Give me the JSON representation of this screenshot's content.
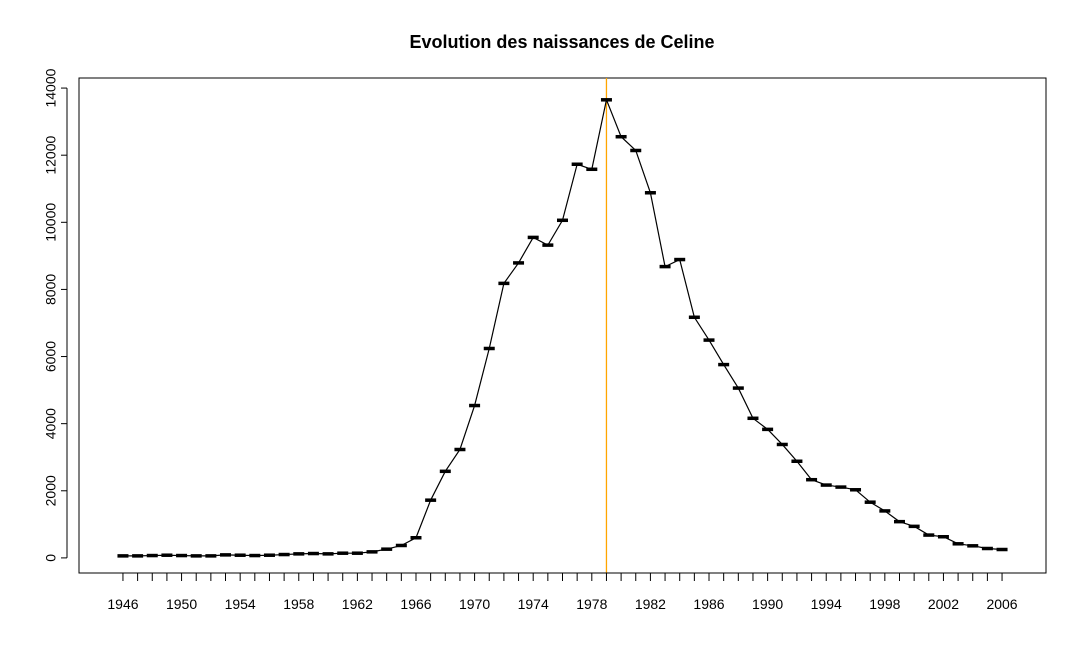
{
  "chart_data": {
    "type": "line",
    "title": "Evolution des naissances de Celine",
    "xlabel": "",
    "ylabel": "",
    "x_tick_labels": [
      "1946",
      "1950",
      "1954",
      "1958",
      "1962",
      "1966",
      "1970",
      "1974",
      "1978",
      "1982",
      "1986",
      "1990",
      "1994",
      "1998",
      "2002",
      "2006"
    ],
    "y_ticks": [
      0,
      2000,
      4000,
      6000,
      8000,
      10000,
      12000,
      14000
    ],
    "xlim": [
      1943,
      2009
    ],
    "ylim": [
      -450,
      14300
    ],
    "grid": false,
    "marker_line": {
      "x": 1979,
      "color": "#FFA500"
    },
    "series": [
      {
        "x": [
          1946,
          1947,
          1948,
          1949,
          1950,
          1951,
          1952,
          1953,
          1954,
          1955,
          1956,
          1957,
          1958,
          1959,
          1960,
          1961,
          1962,
          1963,
          1964,
          1965,
          1966,
          1967,
          1968,
          1969,
          1970,
          1971,
          1972,
          1973,
          1974,
          1975,
          1976,
          1977,
          1978,
          1979,
          1980,
          1981,
          1982,
          1983,
          1984,
          1985,
          1986,
          1987,
          1988,
          1989,
          1990,
          1991,
          1992,
          1993,
          1994,
          1995,
          1996,
          1997,
          1998,
          1999,
          2000,
          2001,
          2002,
          2003,
          2004,
          2005,
          2006
        ],
        "values": [
          60,
          60,
          70,
          80,
          70,
          60,
          60,
          90,
          80,
          70,
          80,
          100,
          120,
          130,
          120,
          140,
          140,
          180,
          260,
          370,
          600,
          1720,
          2580,
          3230,
          4540,
          6240,
          8180,
          8790,
          9550,
          9320,
          10060,
          11730,
          11580,
          13650,
          12550,
          12140,
          10880,
          8680,
          8890,
          7170,
          6490,
          5760,
          5060,
          4160,
          3830,
          3380,
          2880,
          2330,
          2170,
          2110,
          2030,
          1660,
          1400,
          1080,
          940,
          680,
          630,
          420,
          360,
          280,
          250
        ]
      }
    ]
  }
}
